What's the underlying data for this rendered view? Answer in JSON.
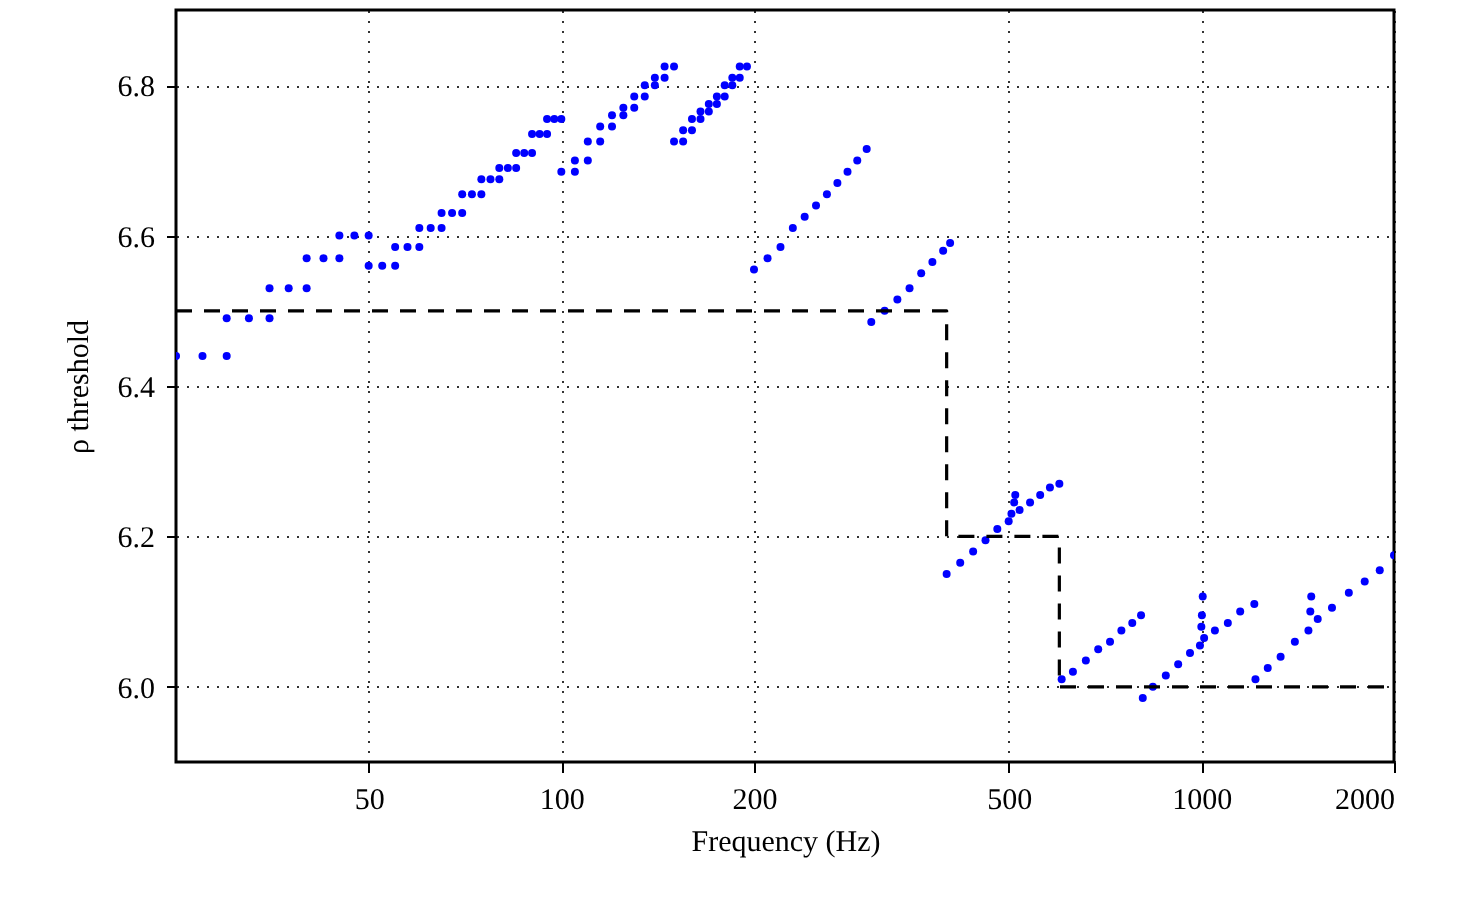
{
  "chart_data": {
    "type": "scatter",
    "xlabel": "Frequency (Hz)",
    "ylabel": "ρ threshold",
    "log": "x",
    "grid": true,
    "xlim": [
      25,
      2000
    ],
    "xticks": [
      50,
      100,
      200,
      500,
      1000,
      2000
    ],
    "ylim": [
      5.9,
      6.9
    ],
    "yticks": [
      {
        "value": 6.0,
        "label": "6.0"
      },
      {
        "value": 6.2,
        "label": "6.2"
      },
      {
        "value": 6.4,
        "label": "6.4"
      },
      {
        "value": 6.6,
        "label": "6.6"
      },
      {
        "value": 6.8,
        "label": "6.8"
      }
    ],
    "series": [
      {
        "marker": "circle",
        "color": "#0000ff",
        "x": [
          25,
          27.5,
          30,
          30,
          32.5,
          35,
          35,
          37.5,
          40,
          40,
          42.5,
          45,
          45,
          47.5,
          50,
          50,
          52.5,
          55,
          55,
          57.5,
          60,
          60,
          62.5,
          65,
          65,
          67.5,
          70,
          70,
          72.5,
          75,
          75,
          77.5,
          80,
          80,
          82.5,
          85,
          85,
          87.5,
          90,
          90,
          92.5,
          95,
          95,
          97.5,
          100,
          100,
          105,
          105,
          110,
          110,
          115,
          115,
          120,
          120,
          125,
          125,
          130,
          130,
          135,
          135,
          140,
          140,
          145,
          145,
          150,
          150,
          155,
          155,
          160,
          160,
          165,
          165,
          170,
          170,
          175,
          175,
          180,
          180,
          185,
          185,
          190,
          190,
          195,
          200,
          210,
          220,
          230,
          240,
          250,
          260,
          270,
          280,
          290,
          300,
          305,
          320,
          335,
          350,
          365,
          380,
          395,
          405,
          400,
          420,
          440,
          460,
          480,
          500,
          505,
          510,
          512,
          520,
          540,
          560,
          580,
          600,
          605,
          630,
          660,
          690,
          720,
          750,
          780,
          805,
          810,
          840,
          880,
          920,
          960,
          995,
          1000,
          1002,
          1005,
          1010,
          1050,
          1100,
          1150,
          1210,
          1215,
          1270,
          1330,
          1400,
          1470,
          1480,
          1485,
          1520,
          1600,
          1700,
          1800,
          1900,
          2000
        ],
        "values": [
          6.44,
          6.44,
          6.44,
          6.49,
          6.49,
          6.49,
          6.53,
          6.53,
          6.53,
          6.57,
          6.57,
          6.57,
          6.6,
          6.6,
          6.6,
          6.56,
          6.56,
          6.56,
          6.585,
          6.585,
          6.585,
          6.61,
          6.61,
          6.61,
          6.63,
          6.63,
          6.63,
          6.655,
          6.655,
          6.655,
          6.675,
          6.675,
          6.675,
          6.69,
          6.69,
          6.69,
          6.71,
          6.71,
          6.71,
          6.735,
          6.735,
          6.735,
          6.755,
          6.755,
          6.755,
          6.685,
          6.685,
          6.7,
          6.7,
          6.725,
          6.725,
          6.745,
          6.745,
          6.76,
          6.76,
          6.77,
          6.77,
          6.785,
          6.785,
          6.8,
          6.8,
          6.81,
          6.81,
          6.825,
          6.825,
          6.725,
          6.725,
          6.74,
          6.74,
          6.755,
          6.755,
          6.765,
          6.765,
          6.775,
          6.775,
          6.785,
          6.785,
          6.8,
          6.8,
          6.81,
          6.81,
          6.825,
          6.825,
          6.555,
          6.57,
          6.585,
          6.61,
          6.625,
          6.64,
          6.655,
          6.67,
          6.685,
          6.7,
          6.715,
          6.485,
          6.5,
          6.515,
          6.53,
          6.55,
          6.565,
          6.58,
          6.59,
          6.15,
          6.165,
          6.18,
          6.195,
          6.21,
          6.22,
          6.23,
          6.245,
          6.255,
          6.235,
          6.245,
          6.255,
          6.265,
          6.27,
          6.01,
          6.02,
          6.035,
          6.05,
          6.06,
          6.075,
          6.085,
          6.095,
          5.985,
          6.0,
          6.015,
          6.03,
          6.045,
          6.055,
          6.08,
          6.095,
          6.12,
          6.065,
          6.075,
          6.085,
          6.1,
          6.11,
          6.01,
          6.025,
          6.04,
          6.06,
          6.075,
          6.1,
          6.12,
          6.09,
          6.105,
          6.125,
          6.14,
          6.155,
          6.175
        ]
      },
      {
        "type": "line",
        "color": "#000000",
        "line_style": "dashed",
        "x": [
          25,
          400,
          400,
          600,
          600,
          2000
        ],
        "values": [
          6.5,
          6.5,
          6.2,
          6.2,
          6.0,
          6.0
        ]
      }
    ]
  }
}
